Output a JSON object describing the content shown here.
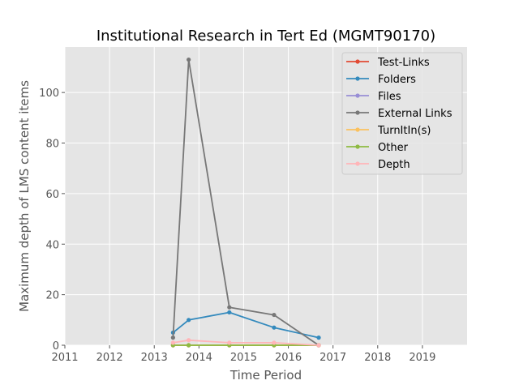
{
  "chart_data": {
    "type": "line",
    "title": "Institutional Research in Tert Ed (MGMT90170)",
    "xlabel": "Time Period",
    "ylabel": "Maximum depth of LMS content items",
    "xlim": [
      2011,
      2020
    ],
    "ylim": [
      0,
      118
    ],
    "xticks": [
      "2011",
      "2012",
      "2013",
      "2014",
      "2015",
      "2016",
      "2017",
      "2018",
      "2019"
    ],
    "yticks": [
      "0",
      "20",
      "40",
      "60",
      "80",
      "100"
    ],
    "grid": true,
    "legend_position": "top-right",
    "series": [
      {
        "name": "Test-Links",
        "color": "#E24A33",
        "x": [
          2013.42,
          2013.77,
          2014.68,
          2015.68,
          2016.68
        ],
        "y": [
          0,
          0,
          0,
          0,
          0
        ]
      },
      {
        "name": "Folders",
        "color": "#348ABD",
        "x": [
          2013.42,
          2013.77,
          2014.68,
          2015.68,
          2016.68
        ],
        "y": [
          5,
          10,
          13,
          7,
          3
        ]
      },
      {
        "name": "Files",
        "color": "#988ED5",
        "x": [
          2013.42,
          2013.77,
          2014.68,
          2015.68,
          2016.68
        ],
        "y": [
          0,
          0,
          0,
          0,
          0
        ]
      },
      {
        "name": "External Links",
        "color": "#777777",
        "x": [
          2013.42,
          2013.77,
          2014.68,
          2015.68,
          2016.68
        ],
        "y": [
          3,
          113,
          15,
          12,
          0
        ]
      },
      {
        "name": "TurnItIn(s)",
        "color": "#FBC15E",
        "x": [
          2013.42,
          2013.77,
          2014.68,
          2015.68,
          2016.68
        ],
        "y": [
          0,
          0,
          0,
          0,
          0
        ]
      },
      {
        "name": "Other",
        "color": "#8EBA42",
        "x": [
          2013.42,
          2013.77,
          2014.68,
          2015.68,
          2016.68
        ],
        "y": [
          0,
          0,
          0,
          0,
          0
        ]
      },
      {
        "name": "Depth",
        "color": "#FFB5B8",
        "x": [
          2013.42,
          2013.77,
          2014.68,
          2015.68,
          2016.68
        ],
        "y": [
          1,
          2,
          1,
          1,
          0
        ]
      }
    ]
  }
}
